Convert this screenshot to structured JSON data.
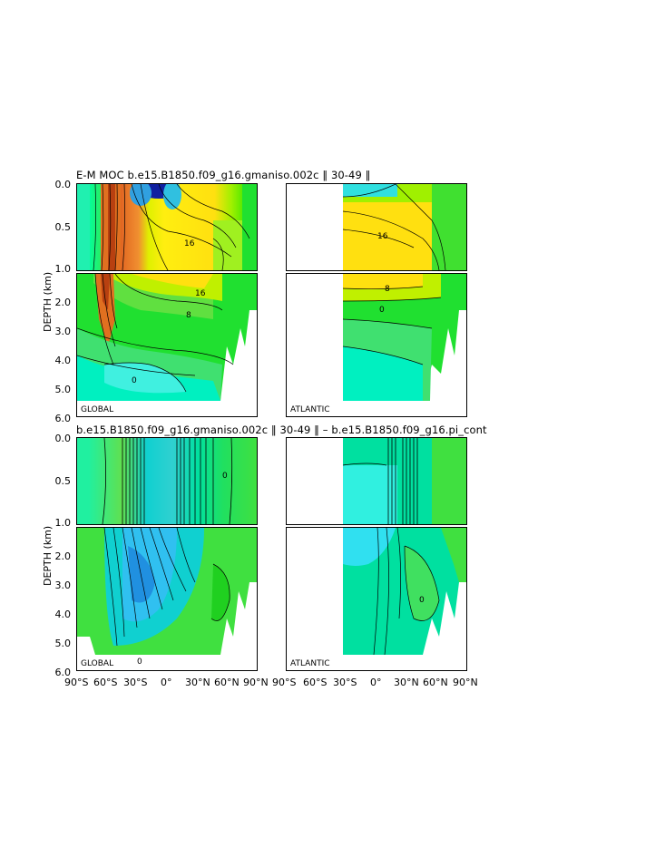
{
  "titles": {
    "top": "E-M MOC   b.e15.B1850.f09_g16.gmaniso.002c  ‖ 30-49 ‖",
    "bottom": "b.e15.B1850.f09_g16.gmaniso.002c  ‖ 30-49 ‖  –  b.e15.B1850.f09_g16.pi_cont"
  },
  "axis": {
    "ylabel": "DEPTH  (km)",
    "upper_ticks": [
      "0.0",
      "0.5",
      "1.0"
    ],
    "lower_ticks": [
      "2.0",
      "3.0",
      "4.0",
      "5.0",
      "6.0"
    ],
    "x_ticks_left": [
      "90°S",
      "60°S",
      "30°S",
      "0°",
      "30°N",
      "60°N",
      "90°N"
    ],
    "x_ticks_right": [
      "90°S",
      "60°S",
      "30°S",
      "0°",
      "30°N",
      "60°N",
      "90°N"
    ]
  },
  "panel_labels": {
    "global": "GLOBAL",
    "atlantic": "ATLANTIC"
  },
  "contour_labels": [
    "16",
    "16",
    "8",
    "0",
    "16",
    "8",
    "0",
    "0",
    "0",
    "0"
  ],
  "chart_data": [
    {
      "type": "heatmap",
      "title": "E-M MOC   b.e15.B1850.f09_g16.gmaniso.002c  ‖ 30-49 ‖",
      "panels": [
        "GLOBAL",
        "ATLANTIC"
      ],
      "ylabel": "DEPTH  (km)",
      "ylim": [
        0,
        6
      ],
      "xlim": [
        -90,
        90
      ],
      "contour_values_labeled": [
        16,
        16,
        8,
        0
      ]
    },
    {
      "type": "heatmap",
      "title": "b.e15.B1850.f09_g16.gmaniso.002c  ‖ 30-49 ‖  –  b.e15.B1850.f09_g16.pi_cont",
      "panels": [
        "GLOBAL",
        "ATLANTIC"
      ],
      "ylabel": "DEPTH  (km)",
      "ylim": [
        0,
        6
      ],
      "xlim": [
        -90,
        90
      ],
      "contour_values_labeled": [
        0
      ]
    }
  ]
}
